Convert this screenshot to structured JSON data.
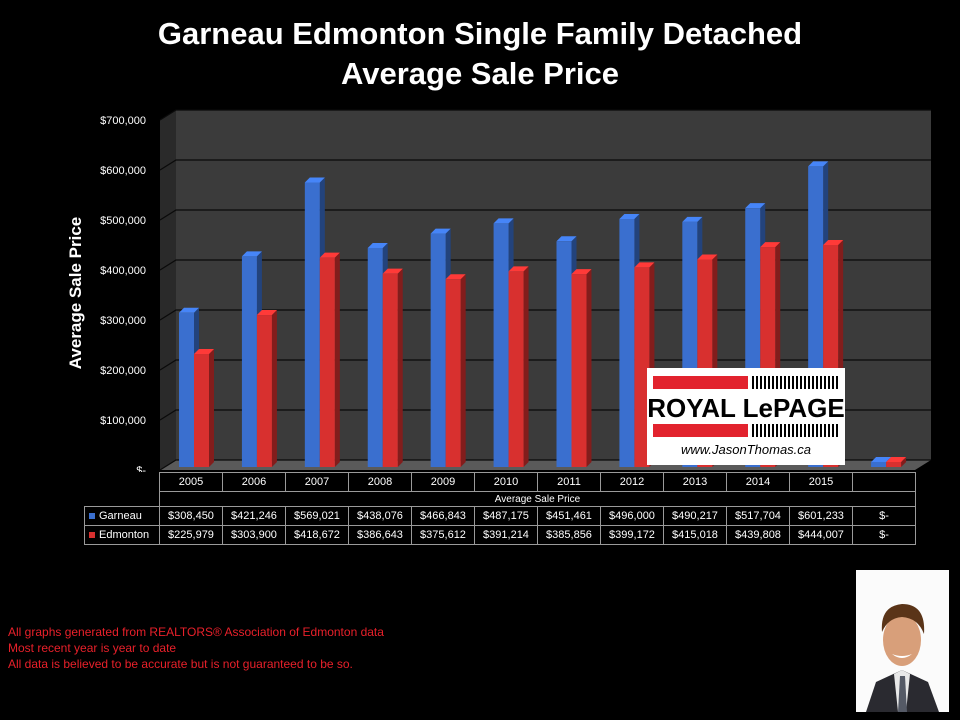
{
  "title_line1": "Garneau Edmonton Single Family Detached",
  "title_line2": "Average Sale Price",
  "chart_data": {
    "type": "bar",
    "title": "Garneau Edmonton Single Family Detached Average Sale Price",
    "ylabel": "Average Sale Price",
    "xlabel": "Average Sale Price",
    "ylim": [
      0,
      700000
    ],
    "yticks": [
      "$-",
      "$100,000",
      "$200,000",
      "$300,000",
      "$400,000",
      "$500,000",
      "$600,000",
      "$700,000"
    ],
    "categories": [
      "2005",
      "2006",
      "2007",
      "2008",
      "2009",
      "2010",
      "2011",
      "2012",
      "2013",
      "2014",
      "2015",
      ""
    ],
    "series": [
      {
        "name": "Garneau",
        "color": "#3a6fcf",
        "values": [
          308450,
          421246,
          569021,
          438076,
          466843,
          487175,
          451461,
          496000,
          490217,
          517704,
          601233,
          0
        ]
      },
      {
        "name": "Edmonton",
        "color": "#d8302f",
        "values": [
          225979,
          303900,
          418672,
          386643,
          375612,
          391214,
          385856,
          399172,
          415018,
          439808,
          444007,
          0
        ]
      }
    ],
    "table": {
      "Garneau": [
        "$308,450",
        "$421,246",
        "$569,021",
        "$438,076",
        "$466,843",
        "$487,175",
        "$451,461",
        "$496,000",
        "$490,217",
        "$517,704",
        "$601,233",
        "$-"
      ],
      "Edmonton": [
        "$225,979",
        "$303,900",
        "$418,672",
        "$386,643",
        "$375,612",
        "$391,214",
        "$385,856",
        "$399,172",
        "$415,018",
        "$439,808",
        "$444,007",
        "$-"
      ]
    }
  },
  "logo": {
    "name": "ROYAL LePAGE",
    "url": "www.JasonThomas.ca"
  },
  "notes": [
    "All graphs generated from REALTORS® Association of Edmonton data",
    "Most recent year is year to date",
    "All data is believed to be accurate but is not guaranteed to be so."
  ]
}
